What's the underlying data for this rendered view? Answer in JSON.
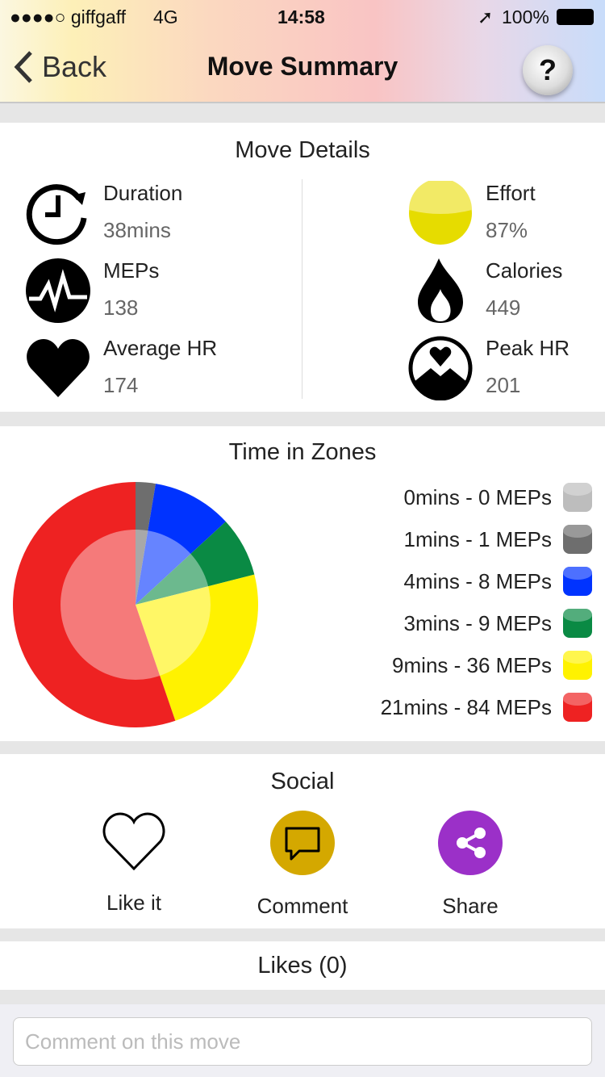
{
  "status": {
    "carrier": "●●●●○ giffgaff",
    "network": "4G",
    "time": "14:58",
    "battery": "100%"
  },
  "nav": {
    "back": "Back",
    "title": "Move Summary",
    "help": "?"
  },
  "details": {
    "title": "Move Details",
    "stats": [
      {
        "label": "Duration",
        "value": "38mins",
        "icon": "clock-icon"
      },
      {
        "label": "MEPs",
        "value": "138",
        "icon": "pulse-icon"
      },
      {
        "label": "Average HR",
        "value": "174",
        "icon": "heart-icon"
      },
      {
        "label": "Effort",
        "value": "87%",
        "icon": "effort-icon"
      },
      {
        "label": "Calories",
        "value": "449",
        "icon": "flame-icon"
      },
      {
        "label": "Peak HR",
        "value": "201",
        "icon": "peak-heart-icon"
      }
    ]
  },
  "zones": {
    "title": "Time in Zones",
    "legend": [
      "0mins - 0 MEPs",
      "1mins - 1 MEPs",
      "4mins - 8 MEPs",
      "3mins - 9 MEPs",
      "9mins - 36 MEPs",
      "21mins - 84 MEPs"
    ]
  },
  "chart_data": {
    "type": "pie",
    "categories": [
      "0mins - 0 MEPs",
      "1mins - 1 MEPs",
      "4mins - 8 MEPs",
      "3mins - 9 MEPs",
      "9mins - 36 MEPs",
      "21mins - 84 MEPs"
    ],
    "values": [
      0,
      1,
      4,
      3,
      9,
      21
    ],
    "colors": [
      "#bdbdbd",
      "#6e6e6e",
      "#0033ff",
      "#0a8a44",
      "#fff200",
      "#ee2222"
    ]
  },
  "social": {
    "title": "Social",
    "like": "Like it",
    "comment": "Comment",
    "share": "Share",
    "likes": "Likes (0)"
  },
  "comment": {
    "placeholder": "Comment on this move"
  }
}
